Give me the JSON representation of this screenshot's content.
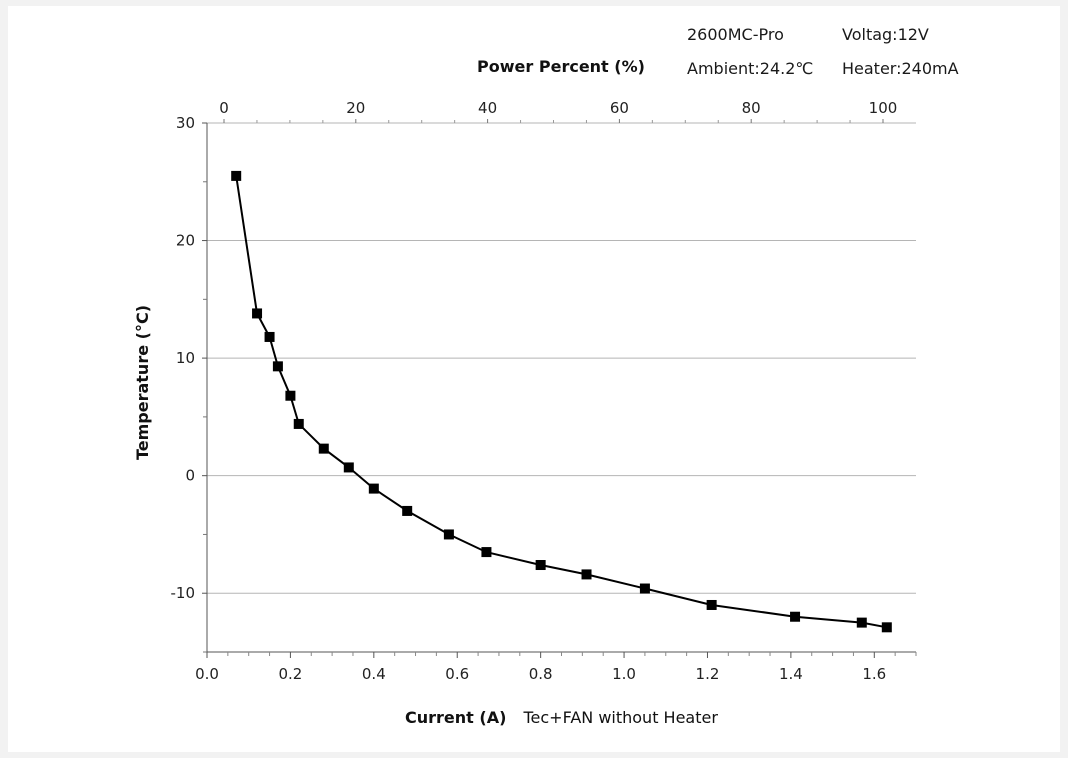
{
  "info": {
    "model": "2600MC-Pro",
    "ambient": "Ambient:24.2℃",
    "voltage": "Voltag:12V",
    "heater": "Heater:240mA"
  },
  "chart_data": {
    "type": "line",
    "title": "",
    "xlabel": "Current (A)",
    "xlabel_note": "Tec+FAN without Heater",
    "x2label": "Power Percent (%)",
    "ylabel": "Temperature (°C)",
    "xlim": [
      0.0,
      1.7
    ],
    "x2lim": [
      0,
      100
    ],
    "ylim": [
      -15,
      30
    ],
    "x_ticks": [
      "0.0",
      "0.2",
      "0.4",
      "0.6",
      "0.8",
      "1.0",
      "1.2",
      "1.4",
      "1.6"
    ],
    "x2_ticks": [
      "0",
      "20",
      "40",
      "60",
      "80",
      "100"
    ],
    "y_ticks": [
      "30",
      "20",
      "10",
      "0",
      "-10"
    ],
    "grid": "horizontal",
    "series": [
      {
        "marker": "square",
        "color": "#000000",
        "x": [
          0.07,
          0.12,
          0.15,
          0.17,
          0.2,
          0.22,
          0.28,
          0.34,
          0.4,
          0.48,
          0.58,
          0.67,
          0.8,
          0.91,
          1.05,
          1.21,
          1.41,
          1.57,
          1.63
        ],
        "y": [
          25.5,
          13.8,
          11.8,
          9.3,
          6.8,
          4.4,
          2.3,
          0.7,
          -1.1,
          -3.0,
          -5.0,
          -6.5,
          -7.6,
          -8.4,
          -9.6,
          -11.0,
          -12.0,
          -12.5,
          -12.9
        ]
      }
    ]
  }
}
